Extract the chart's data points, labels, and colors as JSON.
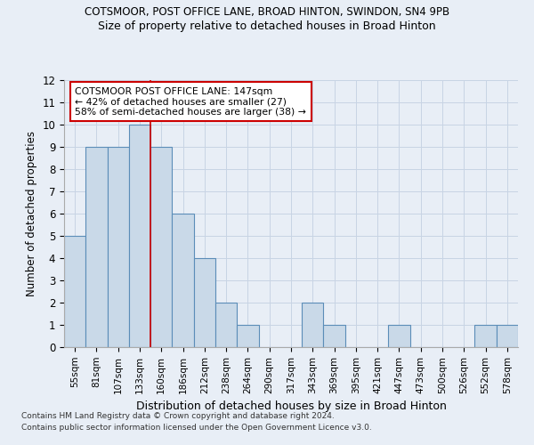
{
  "title1": "COTSMOOR, POST OFFICE LANE, BROAD HINTON, SWINDON, SN4 9PB",
  "title2": "Size of property relative to detached houses in Broad Hinton",
  "xlabel": "Distribution of detached houses by size in Broad Hinton",
  "ylabel": "Number of detached properties",
  "categories": [
    "55sqm",
    "81sqm",
    "107sqm",
    "133sqm",
    "160sqm",
    "186sqm",
    "212sqm",
    "238sqm",
    "264sqm",
    "290sqm",
    "317sqm",
    "343sqm",
    "369sqm",
    "395sqm",
    "421sqm",
    "447sqm",
    "473sqm",
    "500sqm",
    "526sqm",
    "552sqm",
    "578sqm"
  ],
  "values": [
    5,
    9,
    9,
    10,
    9,
    6,
    4,
    2,
    1,
    0,
    0,
    2,
    1,
    0,
    0,
    1,
    0,
    0,
    0,
    1,
    1
  ],
  "bar_color": "#c9d9e8",
  "bar_edge_color": "#5b8db8",
  "vline_x_index": 3.5,
  "vline_color": "#cc0000",
  "annotation_text": "COTSMOOR POST OFFICE LANE: 147sqm\n← 42% of detached houses are smaller (27)\n58% of semi-detached houses are larger (38) →",
  "annotation_box_color": "#ffffff",
  "annotation_box_edge": "#cc0000",
  "ylim": [
    0,
    12
  ],
  "yticks": [
    0,
    1,
    2,
    3,
    4,
    5,
    6,
    7,
    8,
    9,
    10,
    11,
    12
  ],
  "grid_color": "#c8d4e4",
  "footnote1": "Contains HM Land Registry data © Crown copyright and database right 2024.",
  "footnote2": "Contains public sector information licensed under the Open Government Licence v3.0.",
  "bg_color": "#e8eef6"
}
